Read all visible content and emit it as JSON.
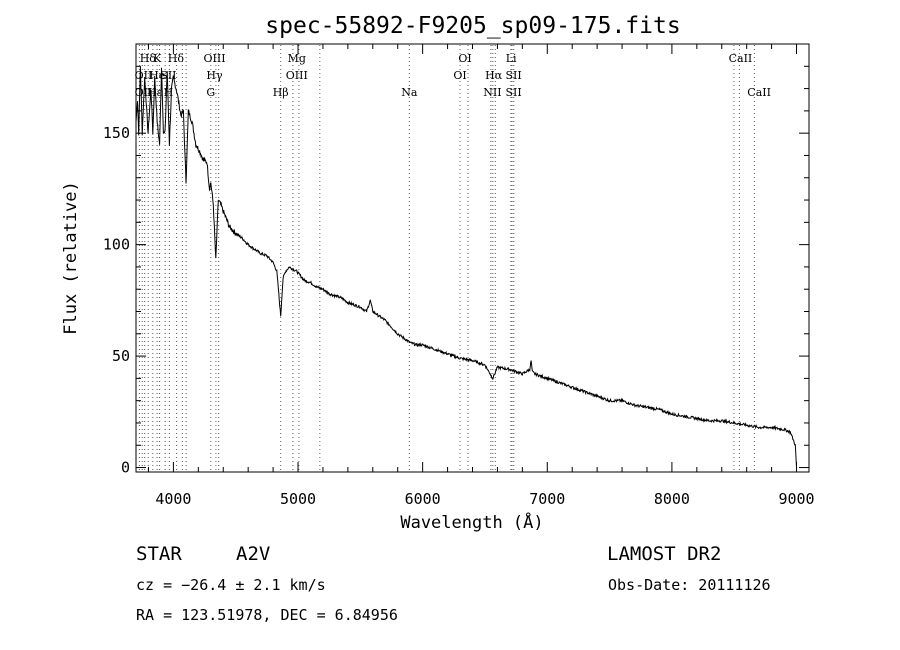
{
  "chart_data": {
    "type": "line",
    "title": "spec-55892-F9205_sp09-175.fits",
    "xlabel": "Wavelength (Å)",
    "ylabel": "Flux (relative)",
    "xlim": [
      3700,
      9100
    ],
    "ylim": [
      -2,
      190
    ],
    "xticks": [
      4000,
      5000,
      6000,
      7000,
      8000,
      9000
    ],
    "yticks": [
      0,
      50,
      100,
      150
    ],
    "grid": false,
    "series": [
      {
        "x": [
          3700,
          3712,
          3722,
          3735,
          3750,
          3770,
          3797,
          3820,
          3835,
          3850,
          3870,
          3889,
          3905,
          3920,
          3933,
          3950,
          3968,
          3985,
          4000,
          4030,
          4060,
          4080,
          4101,
          4120,
          4150,
          4180,
          4210,
          4240,
          4270,
          4290,
          4300,
          4320,
          4340,
          4360,
          4380,
          4400,
          4450,
          4500,
          4550,
          4600,
          4650,
          4700,
          4750,
          4800,
          4830,
          4861,
          4880,
          4900,
          4930,
          4960,
          4990,
          5020,
          5050,
          5100,
          5150,
          5200,
          5250,
          5300,
          5350,
          5400,
          5450,
          5500,
          5550,
          5580,
          5600,
          5650,
          5700,
          5750,
          5800,
          5850,
          5900,
          5950,
          6000,
          6100,
          6200,
          6300,
          6400,
          6500,
          6563,
          6600,
          6700,
          6800,
          6860,
          6870,
          6880,
          6900,
          7000,
          7100,
          7200,
          7300,
          7400,
          7500,
          7600,
          7700,
          7800,
          7900,
          8000,
          8100,
          8200,
          8300,
          8400,
          8500,
          8600,
          8700,
          8800,
          8900,
          8950,
          8990,
          9000
        ],
        "y": [
          155,
          165,
          150,
          180,
          150,
          175,
          150,
          170,
          150,
          175,
          155,
          145,
          180,
          150,
          150,
          178,
          145,
          170,
          175,
          168,
          158,
          160,
          128,
          160,
          155,
          145,
          142,
          138,
          137,
          125,
          128,
          118,
          93,
          120,
          118,
          115,
          108,
          105,
          103,
          100,
          98,
          96,
          95,
          92,
          88,
          68,
          85,
          88,
          90,
          89,
          88,
          86,
          84,
          83,
          81,
          80,
          78,
          77,
          76,
          74,
          73,
          72,
          70,
          75,
          70,
          68,
          66,
          63,
          60,
          58,
          56,
          55,
          55,
          53,
          51,
          49,
          48,
          46,
          40,
          45,
          44,
          42,
          44,
          48,
          43,
          42,
          40,
          38,
          36,
          34,
          32,
          30,
          30,
          28,
          27,
          26,
          24,
          23,
          22,
          21,
          21,
          20,
          19,
          18,
          18,
          17,
          16,
          10,
          0
        ]
      }
    ],
    "annotations": {
      "row1": [
        "Hδ",
        "K",
        "Hδ",
        "OIII",
        "Mg",
        "OI",
        "Li",
        "CaII"
      ],
      "row2": [
        "OII",
        "He",
        "SII",
        "Hγ",
        "OIII",
        "OI",
        "Hα",
        "SII"
      ],
      "row3": [
        "OII",
        "Hε",
        "H",
        "G",
        "Hβ",
        "Na",
        "NII",
        "SII",
        "CaII"
      ]
    }
  },
  "footer": {
    "object_type": "STAR",
    "subclass": "A2V",
    "survey": "LAMOST DR2",
    "cz": "cz = −26.4 ± 2.1 km/s",
    "obs_date": "Obs-Date: 20111126",
    "coords": "RA = 123.51978, DEC =   6.84956"
  }
}
